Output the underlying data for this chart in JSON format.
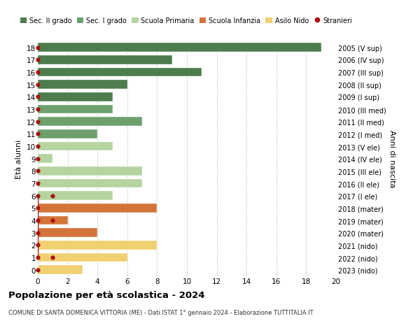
{
  "ages": [
    18,
    17,
    16,
    15,
    14,
    13,
    12,
    11,
    10,
    9,
    8,
    7,
    6,
    5,
    4,
    3,
    2,
    1,
    0
  ],
  "values": [
    19,
    9,
    11,
    6,
    5,
    5,
    7,
    4,
    5,
    1,
    7,
    7,
    5,
    8,
    2,
    4,
    8,
    6,
    3
  ],
  "right_labels": [
    "2005 (V sup)",
    "2006 (IV sup)",
    "2007 (III sup)",
    "2008 (II sup)",
    "2009 (I sup)",
    "2010 (III med)",
    "2011 (II med)",
    "2012 (I med)",
    "2013 (V ele)",
    "2014 (IV ele)",
    "2015 (III ele)",
    "2016 (II ele)",
    "2017 (I ele)",
    "2018 (mater)",
    "2019 (mater)",
    "2020 (mater)",
    "2021 (nido)",
    "2022 (nido)",
    "2023 (nido)"
  ],
  "colors": [
    "#4d7c4d",
    "#4d7c4d",
    "#4d7c4d",
    "#4d7c4d",
    "#4d7c4d",
    "#6da06d",
    "#6da06d",
    "#6da06d",
    "#b5d4a0",
    "#b5d4a0",
    "#b5d4a0",
    "#b5d4a0",
    "#b5d4a0",
    "#d4743a",
    "#d4743a",
    "#d4743a",
    "#f0d070",
    "#f0d070",
    "#f0d070"
  ],
  "legend_labels": [
    "Sec. II grado",
    "Sec. I grado",
    "Scuola Primaria",
    "Scuola Infanzia",
    "Asilo Nido",
    "Stranieri"
  ],
  "legend_colors": [
    "#4d7c4d",
    "#6da06d",
    "#b5d4a0",
    "#d4743a",
    "#f0d070",
    "#aa1111"
  ],
  "stranieri_color": "#aa1111",
  "stranieri_ages_line": [
    6,
    4,
    1
  ],
  "title": "Popolazione per età scolastica - 2024",
  "subtitle": "COMUNE DI SANTA DOMENICA VITTORIA (ME) - Dati ISTAT 1° gennaio 2024 - Elaborazione TUTTITALIA.IT",
  "ylabel": "Età alunni",
  "right_ylabel": "Anni di nascita",
  "xlim": [
    0,
    20
  ],
  "ylim": [
    -0.5,
    18.5
  ],
  "background_color": "#ffffff",
  "grid_color": "#cccccc"
}
